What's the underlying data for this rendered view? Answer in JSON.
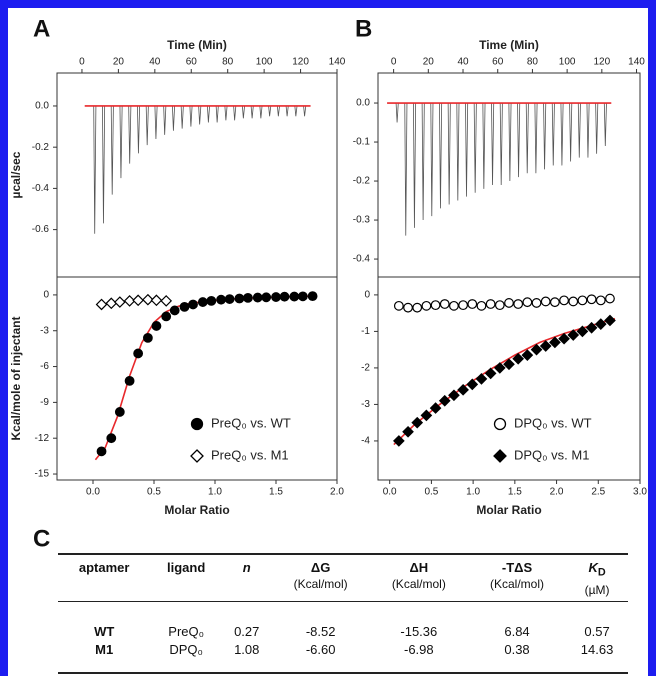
{
  "panel_labels": [
    "A",
    "B",
    "C"
  ],
  "chart_data": [
    {
      "type": "thermogram",
      "xaxis": "top",
      "xlabel": "Time (Min)",
      "ylabel": "µcal/sec",
      "xlim": [
        -13.7,
        140
      ],
      "xticks": [
        0,
        20,
        40,
        60,
        80,
        100,
        120,
        140
      ],
      "ylim": [
        -0.83,
        0.16
      ],
      "yticks": [
        {
          "value": 0,
          "label": "0.0"
        },
        {
          "value": -0.2,
          "label": "-0.2"
        },
        {
          "value": -0.4,
          "label": "-0.4"
        },
        {
          "value": -0.6,
          "label": "-0.6"
        }
      ],
      "color": "#555555",
      "baseline": 0,
      "baseline_color": "#e8282b",
      "x": [
        7,
        11.8,
        16.6,
        21.4,
        26.2,
        31,
        35.8,
        40.6,
        45.4,
        50.2,
        55,
        59.8,
        64.6,
        69.4,
        74.2,
        79,
        83.8,
        88.6,
        93.4,
        98.2,
        103,
        107.8,
        112.6,
        117.4,
        122.2
      ],
      "values": [
        -0.62,
        -0.57,
        -0.43,
        -0.35,
        -0.28,
        -0.23,
        -0.19,
        -0.16,
        -0.14,
        -0.12,
        -0.11,
        -0.1,
        -0.09,
        -0.08,
        -0.08,
        -0.07,
        -0.07,
        -0.06,
        -0.06,
        -0.06,
        -0.05,
        -0.05,
        -0.05,
        -0.05,
        -0.05
      ]
    },
    {
      "type": "isotherm",
      "xaxis": "bottom",
      "xlabel": "Molar Ratio",
      "ylabel": "Kcal/mole of injectant",
      "xlim": [
        -0.295,
        2.0
      ],
      "xticks": [
        {
          "value": 0,
          "label": "0.0"
        },
        {
          "value": 0.5,
          "label": "0.5"
        },
        {
          "value": 1,
          "label": "1.0"
        },
        {
          "value": 1.5,
          "label": "1.5"
        },
        {
          "value": 2,
          "label": "2.0"
        }
      ],
      "ylim": [
        -15.5,
        1.5
      ],
      "yticks": [
        0,
        -3,
        -6,
        -9,
        -12,
        -15
      ],
      "legend": "lower right",
      "series": [
        {
          "name": "PreQ₀ vs. WT",
          "color": "#000000",
          "marker": "circle",
          "filled": true,
          "x": [
            0.07,
            0.15,
            0.22,
            0.3,
            0.37,
            0.45,
            0.52,
            0.6,
            0.67,
            0.75,
            0.82,
            0.9,
            0.97,
            1.05,
            1.12,
            1.2,
            1.27,
            1.35,
            1.42,
            1.5,
            1.57,
            1.65,
            1.72,
            1.8
          ],
          "values": [
            -13.1,
            -12.0,
            -9.8,
            -7.2,
            -4.9,
            -3.6,
            -2.6,
            -1.8,
            -1.3,
            -1.0,
            -0.8,
            -0.6,
            -0.5,
            -0.4,
            -0.35,
            -0.3,
            -0.25,
            -0.22,
            -0.2,
            -0.18,
            -0.15,
            -0.14,
            -0.12,
            -0.1
          ]
        },
        {
          "name": "PreQ₀ vs. M1",
          "color": "#000000",
          "marker": "diamond",
          "filled": false,
          "x": [
            0.07,
            0.15,
            0.22,
            0.3,
            0.37,
            0.45,
            0.52,
            0.6
          ],
          "values": [
            -0.8,
            -0.7,
            -0.6,
            -0.5,
            -0.45,
            -0.4,
            -0.45,
            -0.5
          ]
        }
      ],
      "fit": {
        "color": "#e8282b",
        "x": [
          0.02,
          0.1,
          0.2,
          0.3,
          0.4,
          0.5,
          0.6,
          0.7,
          0.8,
          1.0,
          1.2,
          1.5,
          1.8
        ],
        "values": [
          -13.8,
          -12.8,
          -10.2,
          -6.8,
          -4.0,
          -2.3,
          -1.4,
          -0.95,
          -0.7,
          -0.45,
          -0.3,
          -0.18,
          -0.1
        ]
      }
    },
    {
      "type": "thermogram",
      "xaxis": "top",
      "xlabel": "Time (Min)",
      "xlim": [
        -9,
        142
      ],
      "xticks": [
        0,
        20,
        40,
        60,
        80,
        100,
        120,
        140
      ],
      "ylim": [
        -0.446,
        0.077
      ],
      "yticks": [
        {
          "value": 0,
          "label": "0.0"
        },
        {
          "value": -0.1,
          "label": "-0.1"
        },
        {
          "value": -0.2,
          "label": "-0.2"
        },
        {
          "value": -0.3,
          "label": "-0.3"
        },
        {
          "value": -0.4,
          "label": "-0.4"
        }
      ],
      "color": "#555555",
      "baseline": 0,
      "baseline_color": "#e8282b",
      "x": [
        2,
        7,
        12,
        17,
        22,
        27,
        32,
        37,
        42,
        47,
        52,
        57,
        62,
        67,
        72,
        77,
        82,
        87,
        92,
        97,
        102,
        107,
        112,
        117,
        122
      ],
      "values": [
        -0.05,
        -0.34,
        -0.32,
        -0.3,
        -0.29,
        -0.27,
        -0.26,
        -0.25,
        -0.24,
        -0.23,
        -0.22,
        -0.21,
        -0.21,
        -0.2,
        -0.19,
        -0.18,
        -0.18,
        -0.17,
        -0.16,
        -0.16,
        -0.15,
        -0.14,
        -0.14,
        -0.13,
        -0.11
      ]
    },
    {
      "type": "isotherm",
      "xaxis": "bottom",
      "xlabel": "Molar Ratio",
      "xlim": [
        -0.14,
        3.0
      ],
      "xticks": [
        {
          "value": 0,
          "label": "0.0"
        },
        {
          "value": 0.5,
          "label": "0.5"
        },
        {
          "value": 1,
          "label": "1.0"
        },
        {
          "value": 1.5,
          "label": "1.5"
        },
        {
          "value": 2,
          "label": "2.0"
        },
        {
          "value": 2.5,
          "label": "2.5"
        },
        {
          "value": 3,
          "label": "3.0"
        }
      ],
      "ylim": [
        -5.07,
        0.49
      ],
      "yticks": [
        0,
        -1,
        -2,
        -3,
        -4
      ],
      "legend": "lower right",
      "series": [
        {
          "name": "DPQ₀ vs. WT",
          "color": "#000000",
          "marker": "circle",
          "filled": false,
          "x": [
            0.11,
            0.22,
            0.33,
            0.44,
            0.55,
            0.66,
            0.77,
            0.88,
            0.99,
            1.1,
            1.21,
            1.32,
            1.43,
            1.54,
            1.65,
            1.76,
            1.87,
            1.98,
            2.09,
            2.2,
            2.31,
            2.42,
            2.53,
            2.64
          ],
          "values": [
            -0.3,
            -0.35,
            -0.35,
            -0.3,
            -0.28,
            -0.25,
            -0.3,
            -0.28,
            -0.25,
            -0.3,
            -0.25,
            -0.28,
            -0.22,
            -0.25,
            -0.2,
            -0.22,
            -0.18,
            -0.2,
            -0.15,
            -0.18,
            -0.15,
            -0.12,
            -0.15,
            -0.1
          ]
        },
        {
          "name": "DPQ₀ vs. M1",
          "color": "#000000",
          "marker": "diamond",
          "filled": true,
          "x": [
            0.11,
            0.22,
            0.33,
            0.44,
            0.55,
            0.66,
            0.77,
            0.88,
            0.99,
            1.1,
            1.21,
            1.32,
            1.43,
            1.54,
            1.65,
            1.76,
            1.87,
            1.98,
            2.09,
            2.2,
            2.31,
            2.42,
            2.53,
            2.64
          ],
          "values": [
            -4.0,
            -3.75,
            -3.5,
            -3.3,
            -3.1,
            -2.9,
            -2.75,
            -2.6,
            -2.45,
            -2.3,
            -2.15,
            -2.0,
            -1.9,
            -1.75,
            -1.65,
            -1.5,
            -1.4,
            -1.3,
            -1.2,
            -1.1,
            -1.0,
            -0.9,
            -0.8,
            -0.7
          ]
        }
      ],
      "fit": {
        "color": "#e8282b",
        "x": [
          0.05,
          0.3,
          0.6,
          0.9,
          1.2,
          1.5,
          1.8,
          2.1,
          2.4,
          2.7
        ],
        "values": [
          -4.1,
          -3.55,
          -3.0,
          -2.5,
          -2.05,
          -1.65,
          -1.3,
          -1.05,
          -0.85,
          -0.65
        ]
      }
    }
  ],
  "table": {
    "columns": [
      {
        "label": "aptamer"
      },
      {
        "label": "ligand"
      },
      {
        "label": "n"
      },
      {
        "label": "ΔG",
        "unit": "(Kcal/mol)"
      },
      {
        "label": "ΔH",
        "unit": "(Kcal/mol)"
      },
      {
        "label": "-TΔS",
        "unit": "(Kcal/mol)"
      },
      {
        "label": {
          "main": "K",
          "sub": "D"
        },
        "unit": "(µM)"
      }
    ],
    "rows": [
      [
        "WT",
        "PreQ₀",
        "0.27",
        "-8.52",
        "-15.36",
        "6.84",
        "0.57"
      ],
      [
        "M1",
        "DPQ₀",
        "1.08",
        "-6.60",
        "-6.98",
        "0.38",
        "14.63"
      ]
    ]
  }
}
